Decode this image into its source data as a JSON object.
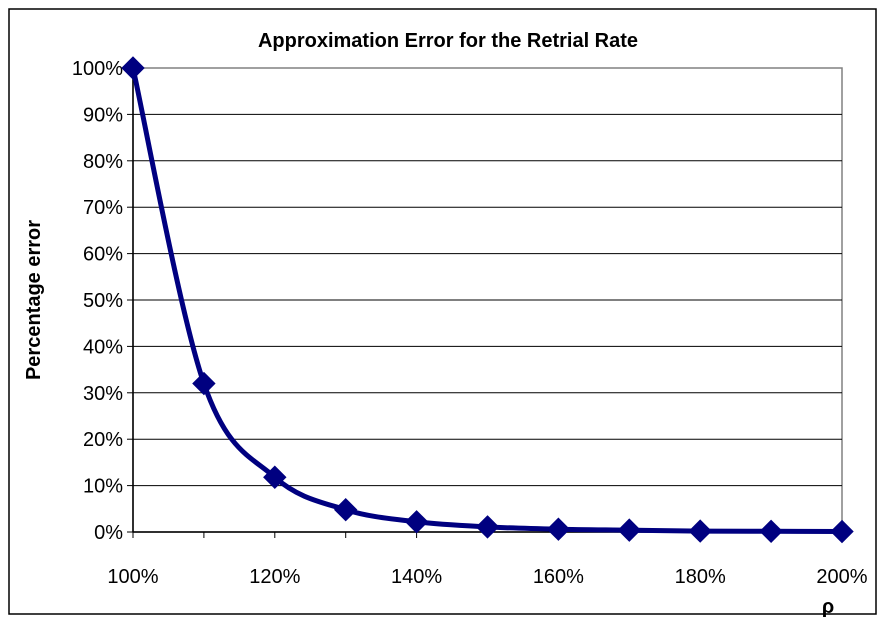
{
  "chart_data": {
    "type": "line",
    "title": "Approximation Error for the Retrial Rate",
    "xlabel": "ρ",
    "ylabel": "Percentage error",
    "x": [
      100,
      110,
      120,
      130,
      140,
      150,
      160,
      170,
      180,
      190,
      200
    ],
    "x_unit": "%",
    "xlim": [
      100,
      200
    ],
    "x_ticks": [
      100,
      120,
      140,
      160,
      180,
      200
    ],
    "x_tick_labels": [
      "100%",
      "120%",
      "140%",
      "160%",
      "180%",
      "200%"
    ],
    "ylim": [
      0,
      100
    ],
    "y_ticks": [
      0,
      10,
      20,
      30,
      40,
      50,
      60,
      70,
      80,
      90,
      100
    ],
    "y_tick_labels": [
      "0%",
      "10%",
      "20%",
      "30%",
      "40%",
      "50%",
      "60%",
      "70%",
      "80%",
      "90%",
      "100%"
    ],
    "series": [
      {
        "values": [
          100,
          32,
          11.8,
          4.8,
          2.2,
          1.1,
          0.6,
          0.4,
          0.2,
          0.15,
          0.1
        ],
        "color": "#000080",
        "marker": "diamond",
        "smooth": true
      }
    ],
    "grid": {
      "horizontal": true,
      "vertical": false
    },
    "legend": "none",
    "colors": {
      "line": "#000080",
      "marker": "#000080",
      "grid": "#000000",
      "frame": "#000000"
    }
  }
}
